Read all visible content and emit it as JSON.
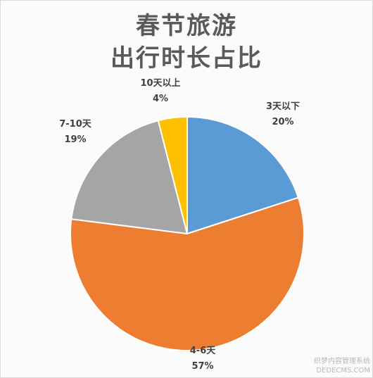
{
  "chart_data": {
    "type": "pie",
    "title_lines": [
      "春节旅游",
      "出行时长占比"
    ],
    "categories": [
      "3天以下",
      "4-6天",
      "7-10天",
      "10天以上"
    ],
    "values": [
      20,
      57,
      19,
      4
    ],
    "value_labels": [
      "20%",
      "57%",
      "19%",
      "4%"
    ],
    "colors": [
      "#5b9bd5",
      "#ed7d31",
      "#a5a5a5",
      "#ffc000"
    ],
    "start_angle_deg": 0,
    "direction": "clockwise"
  },
  "watermark": {
    "line1": "织梦内容管理系统",
    "line2": "DEDECMS.COM"
  }
}
